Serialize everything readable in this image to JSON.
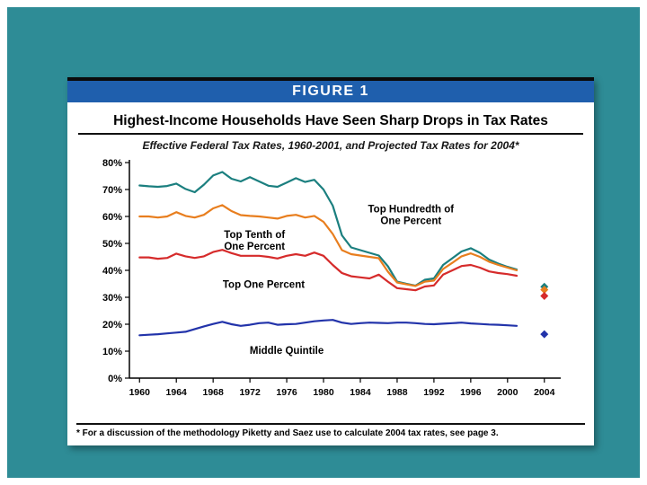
{
  "slide": {
    "figure_label": "FIGURE 1",
    "footnote": "* For a discussion of the methodology Piketty and Saez use to calculate 2004 tax rates, see page 3."
  },
  "colors": {
    "slide_background": "#2E8C96",
    "header_bar": "#1F5FAD",
    "top_hundredth_line": "#1B7F7F",
    "top_tenth_line": "#E87E1E",
    "top_one_percent_line": "#D62B2B",
    "middle_quintile_line": "#2233AA"
  },
  "chart_data": {
    "type": "line",
    "title": "Highest-Income Households Have Seen Sharp Drops in Tax Rates",
    "subtitle": "Effective Federal Tax Rates, 1960-2001, and Projected Tax Rates for 2004*",
    "xlim": [
      1958.9,
      2005.0
    ],
    "ylim": [
      0,
      80
    ],
    "grid": false,
    "legend": "inline-annotations",
    "x_ticks": [
      "1960",
      "1964",
      "1968",
      "1972",
      "1976",
      "1980",
      "1984",
      "1988",
      "1992",
      "1996",
      "2000",
      "2004"
    ],
    "y_ticks": [
      "0%",
      "10%",
      "20%",
      "30%",
      "40%",
      "50%",
      "60%",
      "70%",
      "80%"
    ],
    "x": [
      1960,
      1961,
      1962,
      1963,
      1964,
      1965,
      1966,
      1967,
      1968,
      1969,
      1970,
      1971,
      1972,
      1973,
      1974,
      1975,
      1976,
      1977,
      1978,
      1979,
      1980,
      1981,
      1982,
      1983,
      1984,
      1985,
      1986,
      1987,
      1988,
      1989,
      1990,
      1991,
      1992,
      1993,
      1994,
      1995,
      1996,
      1997,
      1998,
      1999,
      2000,
      2001
    ],
    "projected_year": 2004,
    "series": [
      {
        "name": "Top Hundredth of One Percent",
        "color": "#1B7F7F",
        "values": [
          71.5,
          71.2,
          71.0,
          71.3,
          72.2,
          70.2,
          69.0,
          71.8,
          75.2,
          76.5,
          74.0,
          73.0,
          74.6,
          73.0,
          71.4,
          71.0,
          72.6,
          74.2,
          72.8,
          73.6,
          70.0,
          64.0,
          53.0,
          48.5,
          47.5,
          46.5,
          45.5,
          41.5,
          35.8,
          35.0,
          34.3,
          36.5,
          37.0,
          42.0,
          44.5,
          47.0,
          48.2,
          46.5,
          44.0,
          42.5,
          41.3,
          40.3
        ],
        "projected_2004": 33.9
      },
      {
        "name": "Top Tenth of One Percent",
        "color": "#E87E1E",
        "values": [
          60.0,
          60.0,
          59.6,
          60.0,
          61.6,
          60.2,
          59.6,
          60.6,
          63.0,
          64.2,
          62.0,
          60.5,
          60.2,
          60.0,
          59.6,
          59.2,
          60.2,
          60.6,
          59.6,
          60.2,
          58.0,
          53.5,
          47.5,
          46.0,
          45.5,
          45.0,
          44.5,
          39.5,
          35.5,
          34.8,
          34.2,
          35.8,
          36.2,
          40.5,
          42.8,
          45.2,
          46.3,
          45.0,
          43.2,
          42.0,
          41.0,
          40.0
        ],
        "projected_2004": 32.8
      },
      {
        "name": "Top One Percent",
        "color": "#D62B2B",
        "values": [
          44.8,
          44.8,
          44.3,
          44.6,
          46.2,
          45.2,
          44.6,
          45.2,
          46.8,
          47.6,
          46.4,
          45.4,
          45.4,
          45.4,
          45.0,
          44.4,
          45.4,
          46.0,
          45.4,
          46.6,
          45.4,
          42.0,
          39.0,
          37.8,
          37.4,
          37.0,
          38.4,
          35.8,
          33.4,
          33.0,
          32.6,
          34.0,
          34.4,
          38.4,
          40.0,
          41.6,
          42.0,
          41.0,
          39.6,
          39.0,
          38.6,
          38.0
        ],
        "projected_2004": 30.5
      },
      {
        "name": "Middle Quintile",
        "color": "#2233AA",
        "values": [
          15.9,
          16.1,
          16.3,
          16.6,
          16.9,
          17.2,
          18.2,
          19.2,
          20.1,
          20.9,
          20.0,
          19.4,
          19.8,
          20.4,
          20.6,
          19.8,
          20.0,
          20.1,
          20.6,
          21.1,
          21.4,
          21.6,
          20.6,
          20.1,
          20.4,
          20.6,
          20.5,
          20.4,
          20.6,
          20.6,
          20.4,
          20.1,
          20.0,
          20.2,
          20.4,
          20.6,
          20.3,
          20.1,
          19.9,
          19.8,
          19.6,
          19.4
        ],
        "projected_2004": 16.3
      }
    ],
    "annotations": [
      {
        "text": "Top Hundredth of\nOne Percent",
        "year": 1989.5,
        "value": 61.5
      },
      {
        "text": "Top Tenth of\nOne Percent",
        "year": 1972.5,
        "value": 52.0
      },
      {
        "text": "Top One Percent",
        "year": 1973.5,
        "value": 33.5
      },
      {
        "text": "Middle Quintile",
        "year": 1976.0,
        "value": 9.0
      }
    ]
  }
}
